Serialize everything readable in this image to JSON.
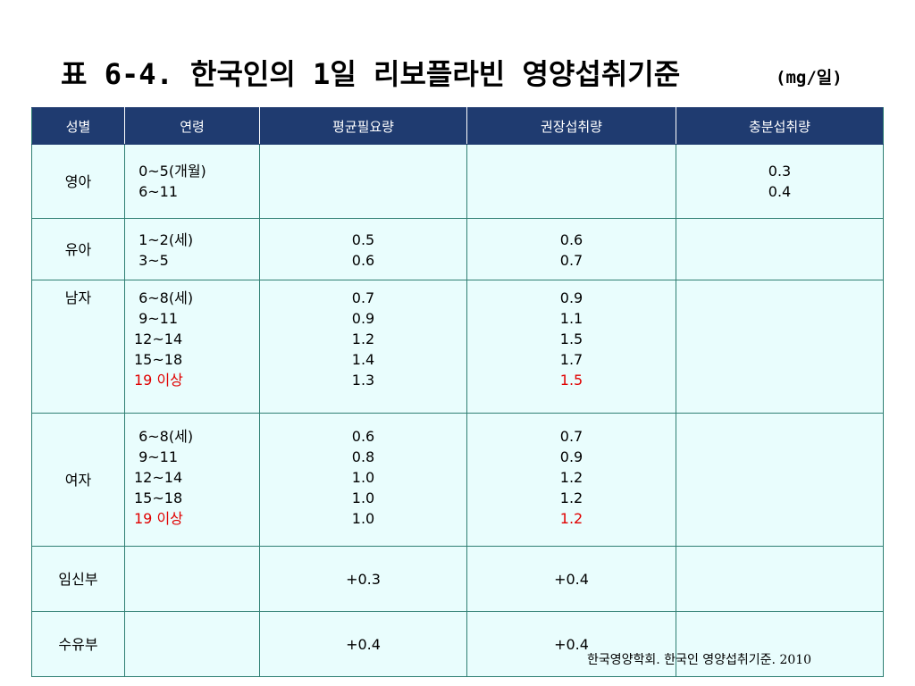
{
  "title": "표 6-4. 한국인의 1일 리보플라빈 영양섭취기준",
  "unit": "(mg/일)",
  "table": {
    "headers": [
      "성별",
      "연령",
      "평균필요량",
      "권장섭취량",
      "충분섭취량"
    ],
    "rows": [
      {
        "sex": "영아",
        "ages": [
          " 0~5(개월)",
          " 6~11"
        ],
        "ear": [],
        "rni": [],
        "ai": [
          "0.3",
          "0.4"
        ],
        "highlight_last": false
      },
      {
        "sex": "유아",
        "ages": [
          " 1~2(세)",
          " 3~5"
        ],
        "ear": [
          "0.5",
          "0.6"
        ],
        "rni": [
          "0.6",
          "0.7"
        ],
        "ai": [],
        "highlight_last": false
      },
      {
        "sex": "남자",
        "ages": [
          " 6~8(세)",
          " 9~11",
          "12~14",
          "15~18",
          "19 이상"
        ],
        "ear": [
          "0.7",
          "0.9",
          "1.2",
          "1.4",
          "1.3"
        ],
        "rni": [
          "0.9",
          "1.1",
          "1.5",
          "1.7",
          "1.5"
        ],
        "ai": [],
        "highlight_last": true
      },
      {
        "sex": "여자",
        "ages": [
          " 6~8(세)",
          " 9~11",
          "12~14",
          "15~18",
          "19 이상"
        ],
        "ear": [
          "0.6",
          "0.8",
          "1.0",
          "1.0",
          "1.0"
        ],
        "rni": [
          "0.7",
          "0.9",
          "1.2",
          "1.2",
          "1.2"
        ],
        "ai": [],
        "highlight_last": true
      },
      {
        "sex": "임신부",
        "ages": [],
        "ear": [
          "+0.3"
        ],
        "rni": [
          "+0.4"
        ],
        "ai": []
      },
      {
        "sex": "수유부",
        "ages": [],
        "ear": [
          "+0.4"
        ],
        "rni": [
          "+0.4"
        ],
        "ai": []
      }
    ]
  },
  "source": "한국영양학회. 한국인 영양섭취기준. 2010",
  "colors": {
    "header_bg": "#1f3b70",
    "cell_bg": "#e9fdfd",
    "border": "#2f7f73",
    "highlight": "#e00000"
  }
}
